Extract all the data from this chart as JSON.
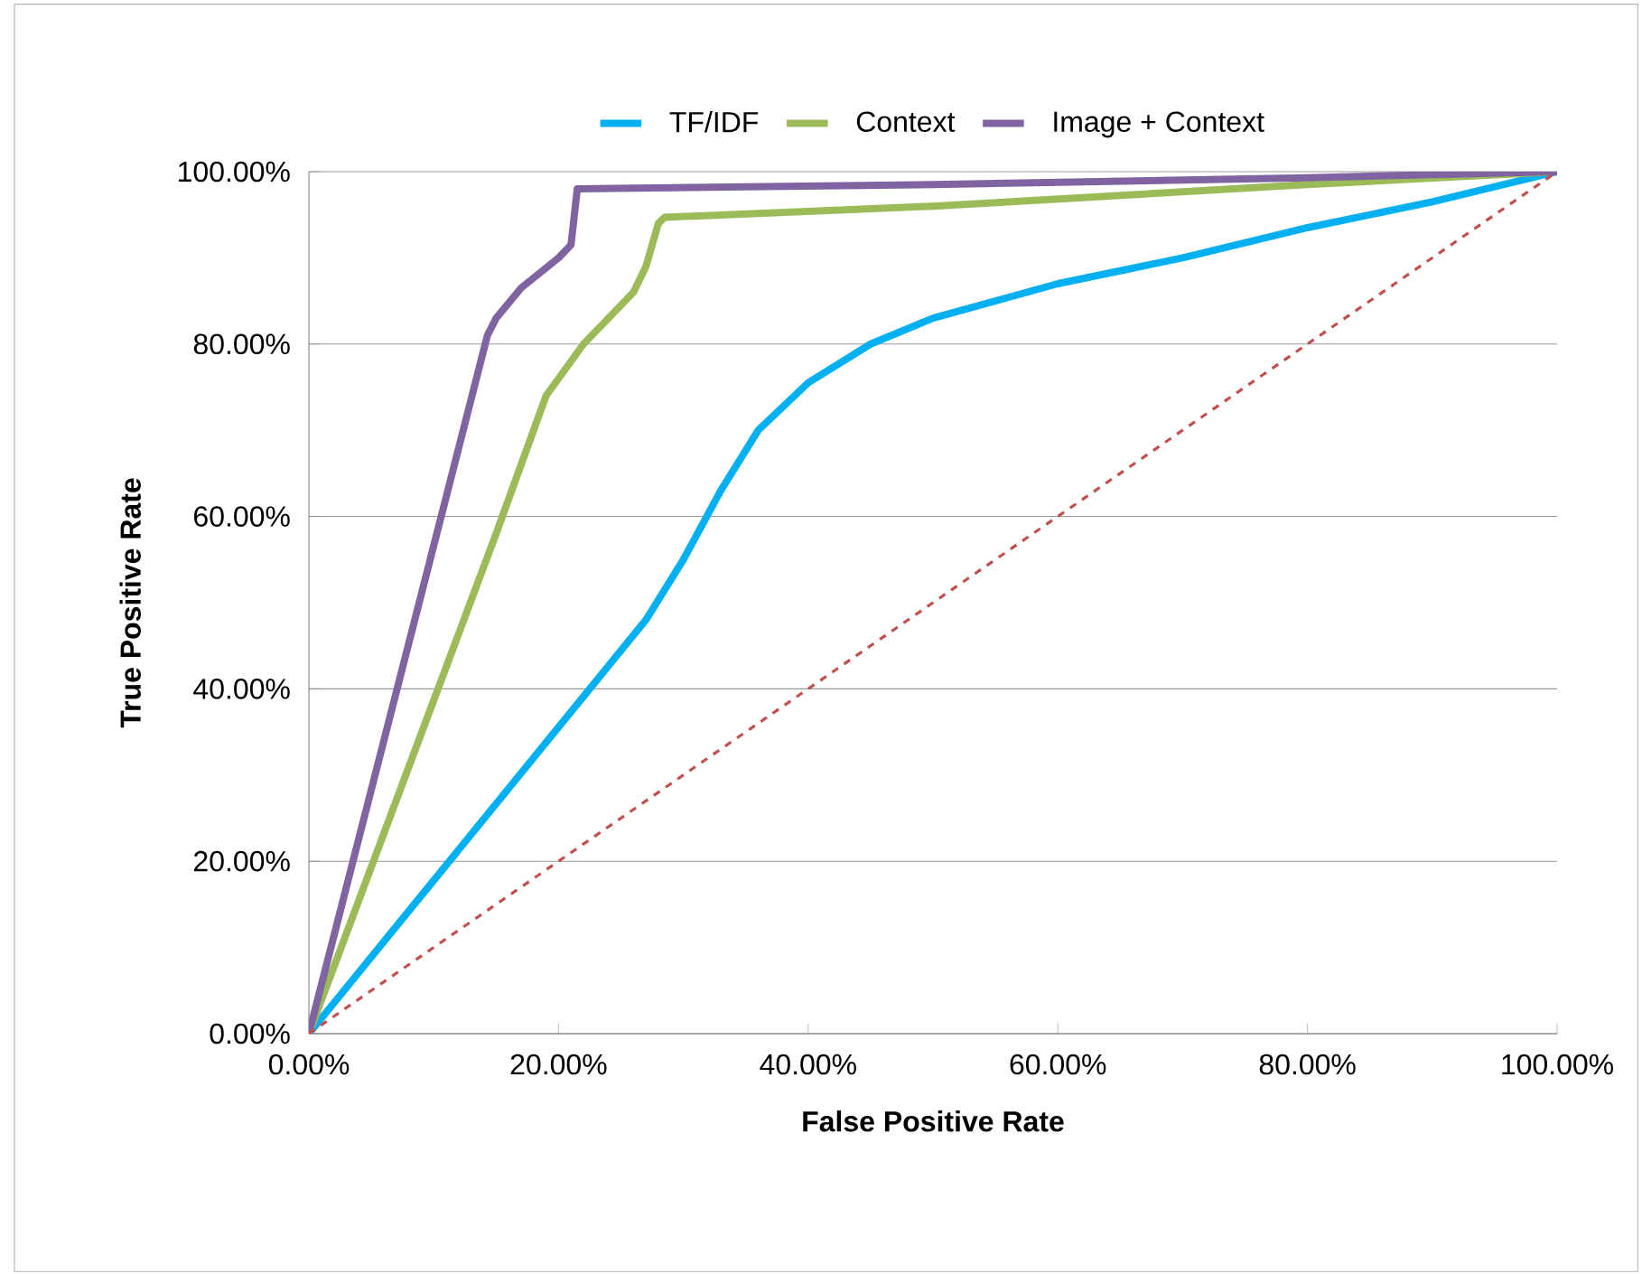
{
  "chart_data": {
    "type": "line",
    "xlabel": "False Positive  Rate",
    "ylabel": "True Positive Rate",
    "legend": "top",
    "grid": "y",
    "marker": "none",
    "xlim": [
      0,
      100
    ],
    "ylim": [
      0,
      100
    ],
    "xticks": [
      {
        "value": 0,
        "label": "0.00%"
      },
      {
        "value": 20,
        "label": "20.00%"
      },
      {
        "value": 40,
        "label": "40.00%"
      },
      {
        "value": 60,
        "label": "60.00%"
      },
      {
        "value": 80,
        "label": "80.00%"
      },
      {
        "value": 100,
        "label": "100.00%"
      }
    ],
    "yticks": [
      {
        "value": 0,
        "label": "0.00%"
      },
      {
        "value": 20,
        "label": "20.00%"
      },
      {
        "value": 40,
        "label": "40.00%"
      },
      {
        "value": 60,
        "label": "60.00%"
      },
      {
        "value": 80,
        "label": "80.00%"
      },
      {
        "value": 100,
        "label": "100.00%"
      }
    ],
    "series": [
      {
        "name": "TF/IDF",
        "color": "#00b0f0",
        "line_style": "solid",
        "x": [
          0,
          27,
          30,
          33,
          36,
          40,
          45,
          50,
          60,
          70,
          80,
          90,
          100
        ],
        "values": [
          0,
          48,
          55,
          63,
          70,
          75.5,
          80,
          83,
          87,
          90,
          93.5,
          96.5,
          100
        ]
      },
      {
        "name": "Context",
        "color": "#9bbb59",
        "line_style": "solid",
        "x": [
          0,
          15,
          19,
          22,
          26,
          27,
          28,
          28.5,
          50,
          80,
          100
        ],
        "values": [
          0,
          58,
          74,
          80,
          86,
          89,
          94,
          94.7,
          96,
          98.5,
          100
        ]
      },
      {
        "name": "Image + Context",
        "color": "#8064a2",
        "line_style": "solid",
        "x": [
          0,
          10,
          14.3,
          15,
          17,
          20,
          21,
          21.5,
          50,
          80,
          100
        ],
        "values": [
          0,
          56.6,
          81,
          83,
          86.5,
          90,
          91.5,
          98,
          98.5,
          99.3,
          100
        ]
      },
      {
        "color": "#c0504d",
        "line_style": "dashed",
        "x": [
          0,
          100
        ],
        "values": [
          0,
          100
        ]
      }
    ]
  }
}
